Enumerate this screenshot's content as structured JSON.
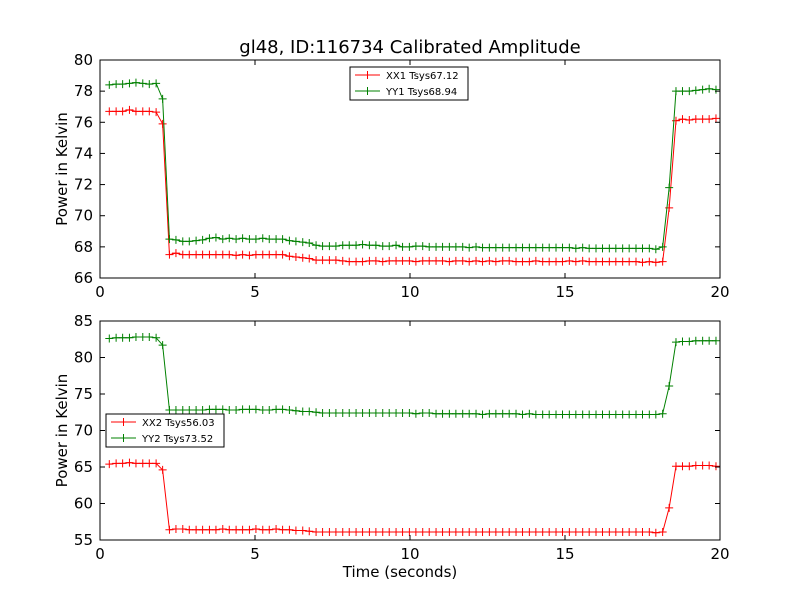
{
  "figure_title": "gl48, ID:116734 Calibrated Amplitude",
  "chart_data": [
    {
      "type": "line",
      "title": "gl48, ID:116734 Calibrated Amplitude",
      "xlabel": "",
      "ylabel": "Power in Kelvin",
      "xlim": [
        0,
        20
      ],
      "ylim": [
        66,
        80
      ],
      "xticks": [
        0,
        5,
        10,
        15,
        20
      ],
      "yticks": [
        66,
        68,
        70,
        72,
        74,
        76,
        78,
        80
      ],
      "grid": false,
      "legend_position": "top-center",
      "x": [
        0.3,
        0.52,
        0.73,
        0.95,
        1.16,
        1.38,
        1.59,
        1.81,
        2.02,
        2.24,
        2.45,
        2.67,
        2.88,
        3.1,
        3.31,
        3.53,
        3.74,
        3.96,
        4.17,
        4.39,
        4.6,
        4.82,
        5.03,
        5.25,
        5.46,
        5.68,
        5.89,
        6.11,
        6.32,
        6.54,
        6.75,
        6.97,
        7.18,
        7.4,
        7.61,
        7.83,
        8.04,
        8.26,
        8.47,
        8.69,
        8.9,
        9.12,
        9.33,
        9.55,
        9.76,
        9.98,
        10.19,
        10.41,
        10.62,
        10.84,
        11.05,
        11.27,
        11.48,
        11.7,
        11.91,
        12.13,
        12.34,
        12.56,
        12.77,
        12.99,
        13.2,
        13.42,
        13.63,
        13.85,
        14.06,
        14.28,
        14.49,
        14.71,
        14.92,
        15.14,
        15.35,
        15.57,
        15.78,
        16.0,
        16.21,
        16.43,
        16.64,
        16.86,
        17.07,
        17.29,
        17.5,
        17.72,
        17.93,
        18.15,
        18.36,
        18.58,
        18.79,
        19.01,
        19.22,
        19.44,
        19.65,
        19.87
      ],
      "series": [
        {
          "name": "XX1 Tsys67.12",
          "color": "#ff0000",
          "values": [
            76.7,
            76.7,
            76.7,
            76.8,
            76.7,
            76.7,
            76.7,
            76.65,
            75.9,
            67.5,
            67.6,
            67.5,
            67.5,
            67.5,
            67.5,
            67.5,
            67.5,
            67.5,
            67.5,
            67.45,
            67.5,
            67.45,
            67.5,
            67.5,
            67.5,
            67.5,
            67.5,
            67.4,
            67.35,
            67.3,
            67.25,
            67.15,
            67.15,
            67.15,
            67.15,
            67.1,
            67.05,
            67.05,
            67.05,
            67.1,
            67.1,
            67.05,
            67.1,
            67.1,
            67.1,
            67.1,
            67.05,
            67.1,
            67.1,
            67.1,
            67.1,
            67.05,
            67.1,
            67.1,
            67.05,
            67.1,
            67.05,
            67.1,
            67.05,
            67.1,
            67.1,
            67.05,
            67.05,
            67.05,
            67.1,
            67.05,
            67.05,
            67.05,
            67.05,
            67.1,
            67.05,
            67.1,
            67.05,
            67.05,
            67.05,
            67.05,
            67.05,
            67.05,
            67.05,
            67.05,
            67.0,
            67.05,
            67.0,
            67.05,
            70.5,
            76.1,
            76.2,
            76.15,
            76.2,
            76.2,
            76.2,
            76.25
          ]
        },
        {
          "name": "YY1 Tsys68.94",
          "color": "#008000",
          "values": [
            78.4,
            78.45,
            78.45,
            78.5,
            78.55,
            78.5,
            78.45,
            78.5,
            77.5,
            68.5,
            68.45,
            68.35,
            68.35,
            68.4,
            68.45,
            68.55,
            68.6,
            68.5,
            68.55,
            68.5,
            68.55,
            68.5,
            68.5,
            68.55,
            68.5,
            68.5,
            68.5,
            68.4,
            68.35,
            68.3,
            68.25,
            68.1,
            68.05,
            68.05,
            68.05,
            68.1,
            68.1,
            68.1,
            68.15,
            68.1,
            68.1,
            68.05,
            68.05,
            68.1,
            68.0,
            68.0,
            68.05,
            68.05,
            68.0,
            68.0,
            68.0,
            68.0,
            68.0,
            68.0,
            67.95,
            68.0,
            67.95,
            67.95,
            67.95,
            67.95,
            67.95,
            67.95,
            67.95,
            67.95,
            67.95,
            67.95,
            67.95,
            67.95,
            67.95,
            67.95,
            67.9,
            67.95,
            67.9,
            67.9,
            67.9,
            67.9,
            67.9,
            67.9,
            67.9,
            67.9,
            67.9,
            67.9,
            67.85,
            68.0,
            71.8,
            78.0,
            78.0,
            78.0,
            78.05,
            78.1,
            78.15,
            78.1
          ]
        }
      ]
    },
    {
      "type": "line",
      "title": "",
      "xlabel": "Time (seconds)",
      "ylabel": "Power in Kelvin",
      "xlim": [
        0,
        20
      ],
      "ylim": [
        55,
        85
      ],
      "xticks": [
        0,
        5,
        10,
        15,
        20
      ],
      "yticks": [
        55,
        60,
        65,
        70,
        75,
        80,
        85
      ],
      "grid": false,
      "legend_position": "center-left",
      "x": [
        0.3,
        0.52,
        0.73,
        0.95,
        1.16,
        1.38,
        1.59,
        1.81,
        2.02,
        2.24,
        2.45,
        2.67,
        2.88,
        3.1,
        3.31,
        3.53,
        3.74,
        3.96,
        4.17,
        4.39,
        4.6,
        4.82,
        5.03,
        5.25,
        5.46,
        5.68,
        5.89,
        6.11,
        6.32,
        6.54,
        6.75,
        6.97,
        7.18,
        7.4,
        7.61,
        7.83,
        8.04,
        8.26,
        8.47,
        8.69,
        8.9,
        9.12,
        9.33,
        9.55,
        9.76,
        9.98,
        10.19,
        10.41,
        10.62,
        10.84,
        11.05,
        11.27,
        11.48,
        11.7,
        11.91,
        12.13,
        12.34,
        12.56,
        12.77,
        12.99,
        13.2,
        13.42,
        13.63,
        13.85,
        14.06,
        14.28,
        14.49,
        14.71,
        14.92,
        15.14,
        15.35,
        15.57,
        15.78,
        16.0,
        16.21,
        16.43,
        16.64,
        16.86,
        17.07,
        17.29,
        17.5,
        17.72,
        17.93,
        18.15,
        18.36,
        18.58,
        18.79,
        19.01,
        19.22,
        19.44,
        19.65,
        19.87
      ],
      "series": [
        {
          "name": "XX2 Tsys56.03",
          "color": "#ff0000",
          "values": [
            65.4,
            65.5,
            65.5,
            65.6,
            65.5,
            65.5,
            65.5,
            65.5,
            64.6,
            56.4,
            56.5,
            56.5,
            56.4,
            56.4,
            56.4,
            56.4,
            56.4,
            56.5,
            56.4,
            56.4,
            56.4,
            56.4,
            56.5,
            56.4,
            56.4,
            56.5,
            56.4,
            56.4,
            56.3,
            56.3,
            56.2,
            56.1,
            56.1,
            56.1,
            56.1,
            56.1,
            56.1,
            56.1,
            56.1,
            56.1,
            56.1,
            56.1,
            56.1,
            56.1,
            56.1,
            56.1,
            56.1,
            56.1,
            56.1,
            56.1,
            56.1,
            56.1,
            56.1,
            56.1,
            56.1,
            56.1,
            56.1,
            56.1,
            56.1,
            56.1,
            56.1,
            56.1,
            56.1,
            56.1,
            56.1,
            56.1,
            56.1,
            56.1,
            56.1,
            56.1,
            56.1,
            56.1,
            56.1,
            56.1,
            56.1,
            56.1,
            56.1,
            56.1,
            56.1,
            56.1,
            56.1,
            56.1,
            56.0,
            56.1,
            59.4,
            65.1,
            65.1,
            65.1,
            65.2,
            65.2,
            65.2,
            65.1
          ]
        },
        {
          "name": "YY2 Tsys73.52",
          "color": "#008000",
          "values": [
            82.6,
            82.7,
            82.7,
            82.7,
            82.8,
            82.8,
            82.8,
            82.7,
            81.7,
            72.8,
            72.8,
            72.8,
            72.8,
            72.8,
            72.8,
            72.9,
            72.9,
            72.9,
            72.8,
            72.8,
            72.9,
            72.9,
            72.9,
            72.8,
            72.8,
            72.9,
            72.9,
            72.8,
            72.7,
            72.6,
            72.6,
            72.5,
            72.4,
            72.4,
            72.4,
            72.4,
            72.4,
            72.4,
            72.4,
            72.4,
            72.4,
            72.4,
            72.4,
            72.4,
            72.4,
            72.4,
            72.3,
            72.4,
            72.4,
            72.3,
            72.3,
            72.3,
            72.3,
            72.3,
            72.3,
            72.3,
            72.2,
            72.3,
            72.3,
            72.3,
            72.3,
            72.3,
            72.2,
            72.3,
            72.2,
            72.2,
            72.2,
            72.2,
            72.2,
            72.2,
            72.2,
            72.2,
            72.2,
            72.2,
            72.2,
            72.2,
            72.2,
            72.2,
            72.2,
            72.2,
            72.2,
            72.2,
            72.2,
            72.3,
            76.1,
            82.1,
            82.2,
            82.2,
            82.3,
            82.3,
            82.3,
            82.3
          ]
        }
      ]
    }
  ]
}
